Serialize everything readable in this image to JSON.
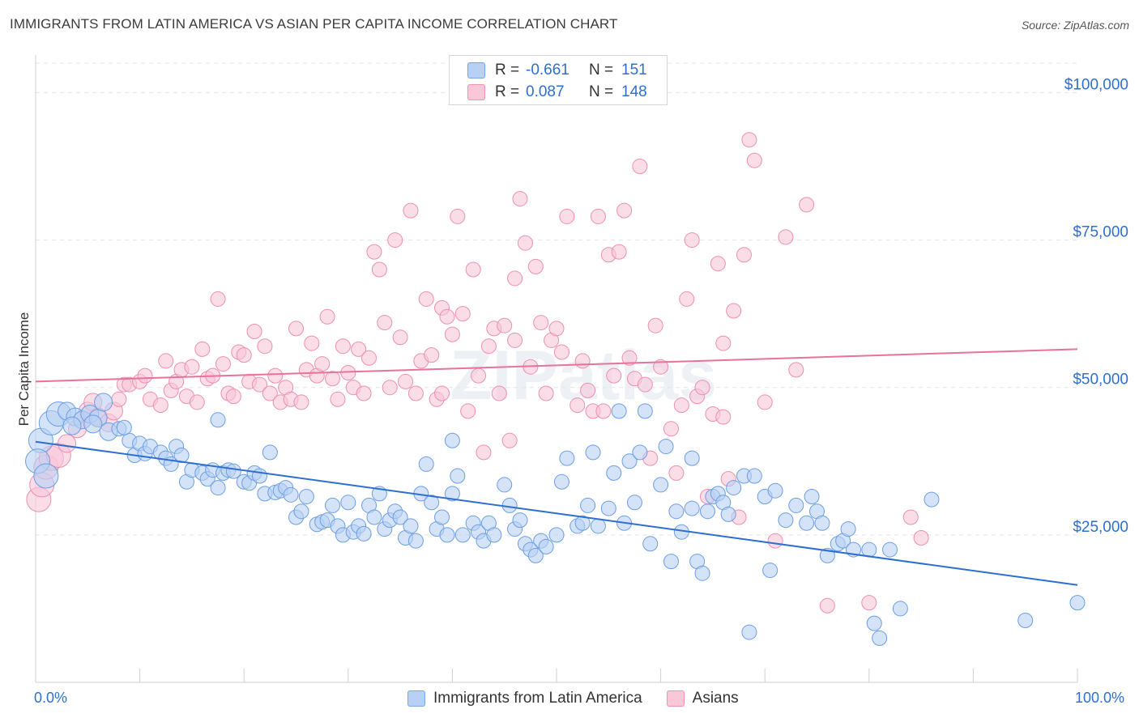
{
  "title": "IMMIGRANTS FROM LATIN AMERICA VS ASIAN PER CAPITA INCOME CORRELATION CHART",
  "source": "Source: ZipAtlas.com",
  "watermark": "ZIPatlas",
  "colors": {
    "blue": "#2d6fd0",
    "pink": "#e8729a",
    "blue_fill": "#b8d0f4",
    "pink_fill": "#f9c7d8"
  },
  "legend": {
    "rows": [
      {
        "r_label": "R =",
        "r_value": "-0.661",
        "n_label": "N =",
        "n_value": "151"
      },
      {
        "r_label": "R =",
        "r_value": "0.087",
        "n_label": "N =",
        "n_value": "148"
      }
    ]
  },
  "chart_data": {
    "type": "scatter",
    "title": "IMMIGRANTS FROM LATIN AMERICA VS ASIAN PER CAPITA INCOME CORRELATION CHART",
    "xlabel": "",
    "ylabel": "Per Capita Income",
    "xlim": [
      0,
      100
    ],
    "ylim": [
      0,
      105000
    ],
    "x_tick_labels": [
      "0.0%",
      "100.0%"
    ],
    "y_tick_values": [
      25000,
      50000,
      75000,
      100000
    ],
    "y_tick_labels": [
      "$25,000",
      "$50,000",
      "$75,000",
      "$100,000"
    ],
    "grid": true,
    "legend_position": "bottom",
    "series": [
      {
        "name": "Immigrants from Latin America",
        "color": "#2d6fd0",
        "trend": {
          "x": [
            0,
            100
          ],
          "y": [
            40800,
            16500
          ]
        },
        "points": [
          [
            0.5,
            41000
          ],
          [
            1.5,
            44000
          ],
          [
            2.2,
            45500
          ],
          [
            3,
            46000
          ],
          [
            3.8,
            45000
          ],
          [
            4.5,
            44500
          ],
          [
            5.2,
            45500
          ],
          [
            6,
            44800
          ],
          [
            6.5,
            47500
          ],
          [
            7,
            42500
          ],
          [
            8,
            43000
          ],
          [
            9,
            41000
          ],
          [
            9.5,
            38500
          ],
          [
            10,
            40500
          ],
          [
            10.5,
            38800
          ],
          [
            11,
            40000
          ],
          [
            12,
            39000
          ],
          [
            12.5,
            38000
          ],
          [
            13,
            37000
          ],
          [
            13.5,
            40000
          ],
          [
            14,
            38500
          ],
          [
            14.5,
            34000
          ],
          [
            15,
            36000
          ],
          [
            16,
            35500
          ],
          [
            16.5,
            34500
          ],
          [
            17,
            36000
          ],
          [
            17.5,
            33000
          ],
          [
            18,
            35500
          ],
          [
            18.5,
            36000
          ],
          [
            19,
            35800
          ],
          [
            20,
            34000
          ],
          [
            20.5,
            33800
          ],
          [
            21,
            35500
          ],
          [
            21.5,
            35000
          ],
          [
            22,
            32000
          ],
          [
            22.5,
            39000
          ],
          [
            23,
            32200
          ],
          [
            23.5,
            32500
          ],
          [
            24,
            33000
          ],
          [
            24.5,
            31800
          ],
          [
            25,
            28000
          ],
          [
            25.5,
            29000
          ],
          [
            26,
            31500
          ],
          [
            27,
            26800
          ],
          [
            27.5,
            27200
          ],
          [
            28,
            27500
          ],
          [
            28.5,
            30000
          ],
          [
            29,
            26500
          ],
          [
            29.5,
            25000
          ],
          [
            30,
            30500
          ],
          [
            30.5,
            25500
          ],
          [
            31,
            26500
          ],
          [
            31.5,
            25200
          ],
          [
            32,
            30000
          ],
          [
            32.5,
            28000
          ],
          [
            33,
            32000
          ],
          [
            33.5,
            26000
          ],
          [
            34,
            27500
          ],
          [
            34.5,
            29000
          ],
          [
            35,
            28000
          ],
          [
            35.5,
            24500
          ],
          [
            36,
            26500
          ],
          [
            36.5,
            24000
          ],
          [
            37,
            32000
          ],
          [
            37.5,
            37000
          ],
          [
            38,
            30500
          ],
          [
            38.5,
            26000
          ],
          [
            39,
            28000
          ],
          [
            39.5,
            25000
          ],
          [
            40,
            32000
          ],
          [
            40.5,
            35000
          ],
          [
            41,
            25000
          ],
          [
            42,
            27000
          ],
          [
            42.5,
            25500
          ],
          [
            43,
            24000
          ],
          [
            43.5,
            27000
          ],
          [
            44,
            25000
          ],
          [
            45,
            33500
          ],
          [
            45.5,
            30000
          ],
          [
            46,
            26000
          ],
          [
            46.5,
            27500
          ],
          [
            47,
            23500
          ],
          [
            47.5,
            22500
          ],
          [
            48,
            21500
          ],
          [
            48.5,
            24000
          ],
          [
            49,
            23000
          ],
          [
            50,
            25000
          ],
          [
            50.5,
            34000
          ],
          [
            51,
            38000
          ],
          [
            52,
            26500
          ],
          [
            52.5,
            27000
          ],
          [
            53,
            30000
          ],
          [
            53.5,
            39000
          ],
          [
            54,
            26500
          ],
          [
            55,
            29500
          ],
          [
            55.5,
            35500
          ],
          [
            56,
            46000
          ],
          [
            56.5,
            27000
          ],
          [
            57,
            37500
          ],
          [
            57.5,
            30500
          ],
          [
            58,
            39000
          ],
          [
            58.5,
            46000
          ],
          [
            59,
            23500
          ],
          [
            60,
            33500
          ],
          [
            60.5,
            40000
          ],
          [
            61,
            20500
          ],
          [
            61.5,
            29000
          ],
          [
            62,
            25500
          ],
          [
            63,
            38000
          ],
          [
            63.5,
            20500
          ],
          [
            64,
            18500
          ],
          [
            64.5,
            29000
          ],
          [
            65,
            31500
          ],
          [
            65.5,
            32000
          ],
          [
            66,
            30500
          ],
          [
            66.5,
            28500
          ],
          [
            67,
            33000
          ],
          [
            68,
            35000
          ],
          [
            68.5,
            8500
          ],
          [
            69,
            35000
          ],
          [
            70,
            31500
          ],
          [
            70.5,
            19000
          ],
          [
            71,
            32500
          ],
          [
            72,
            27500
          ],
          [
            73,
            30000
          ],
          [
            74,
            27000
          ],
          [
            74.5,
            31500
          ],
          [
            75,
            29000
          ],
          [
            75.5,
            27000
          ],
          [
            76,
            21500
          ],
          [
            77,
            23500
          ],
          [
            77.5,
            24000
          ],
          [
            78,
            26000
          ],
          [
            78.5,
            22500
          ],
          [
            80,
            22500
          ],
          [
            80.5,
            10000
          ],
          [
            81,
            7500
          ],
          [
            82,
            22500
          ],
          [
            83,
            12500
          ],
          [
            86,
            31000
          ],
          [
            95,
            10500
          ],
          [
            100,
            13500
          ],
          [
            0.2,
            37500
          ],
          [
            1,
            35000
          ],
          [
            3.5,
            43500
          ],
          [
            5.5,
            43800
          ],
          [
            8.5,
            43200
          ],
          [
            17.5,
            44500
          ],
          [
            63,
            29500
          ],
          [
            40,
            41000
          ]
        ]
      },
      {
        "name": "Asians",
        "color": "#e8729a",
        "trend": {
          "x": [
            0,
            100
          ],
          "y": [
            51000,
            56500
          ]
        },
        "points": [
          [
            0.3,
            31000
          ],
          [
            0.6,
            33500
          ],
          [
            1,
            36500
          ],
          [
            1.5,
            38000
          ],
          [
            2.2,
            38500
          ],
          [
            3,
            40500
          ],
          [
            4,
            43000
          ],
          [
            4.5,
            44500
          ],
          [
            5,
            46000
          ],
          [
            5.5,
            47500
          ],
          [
            6,
            45000
          ],
          [
            7,
            44000
          ],
          [
            7.5,
            46000
          ],
          [
            8,
            48000
          ],
          [
            8.5,
            50500
          ],
          [
            9,
            50500
          ],
          [
            10,
            51000
          ],
          [
            10.5,
            52000
          ],
          [
            11,
            48000
          ],
          [
            12,
            47000
          ],
          [
            12.5,
            54500
          ],
          [
            13,
            49500
          ],
          [
            13.5,
            51000
          ],
          [
            14,
            53000
          ],
          [
            14.5,
            48500
          ],
          [
            15,
            53500
          ],
          [
            15.5,
            47500
          ],
          [
            16,
            56500
          ],
          [
            16.5,
            51500
          ],
          [
            17,
            52000
          ],
          [
            17.5,
            65000
          ],
          [
            18,
            54000
          ],
          [
            18.5,
            49000
          ],
          [
            19,
            48500
          ],
          [
            19.5,
            56000
          ],
          [
            20,
            55500
          ],
          [
            20.5,
            51000
          ],
          [
            21,
            59500
          ],
          [
            21.5,
            50500
          ],
          [
            22,
            57000
          ],
          [
            22.5,
            49000
          ],
          [
            23,
            52000
          ],
          [
            23.5,
            47500
          ],
          [
            24,
            50000
          ],
          [
            24.5,
            48000
          ],
          [
            25,
            60000
          ],
          [
            25.5,
            47500
          ],
          [
            26,
            53000
          ],
          [
            26.5,
            57500
          ],
          [
            27,
            52000
          ],
          [
            27.5,
            54000
          ],
          [
            28,
            62000
          ],
          [
            28.5,
            51500
          ],
          [
            29,
            48000
          ],
          [
            29.5,
            57000
          ],
          [
            30,
            52500
          ],
          [
            30.5,
            50000
          ],
          [
            31,
            56500
          ],
          [
            31.5,
            49000
          ],
          [
            32,
            55000
          ],
          [
            32.5,
            73000
          ],
          [
            33,
            70000
          ],
          [
            33.5,
            61000
          ],
          [
            34,
            50000
          ],
          [
            34.5,
            75000
          ],
          [
            35,
            58500
          ],
          [
            35.5,
            51000
          ],
          [
            36,
            80000
          ],
          [
            36.5,
            49000
          ],
          [
            37,
            54500
          ],
          [
            37.5,
            65000
          ],
          [
            38,
            55500
          ],
          [
            38.5,
            48000
          ],
          [
            39,
            63500
          ],
          [
            39.5,
            62000
          ],
          [
            40,
            59000
          ],
          [
            40.5,
            79000
          ],
          [
            41,
            62500
          ],
          [
            41.5,
            46000
          ],
          [
            42,
            70000
          ],
          [
            42.5,
            52000
          ],
          [
            43,
            39000
          ],
          [
            43.5,
            57000
          ],
          [
            44,
            60000
          ],
          [
            44.5,
            49000
          ],
          [
            45,
            60500
          ],
          [
            45.5,
            41000
          ],
          [
            46,
            58000
          ],
          [
            46.5,
            82000
          ],
          [
            47,
            74500
          ],
          [
            47.5,
            53500
          ],
          [
            48,
            70500
          ],
          [
            48.5,
            61000
          ],
          [
            49,
            49000
          ],
          [
            49.5,
            58000
          ],
          [
            50,
            60000
          ],
          [
            50.5,
            56000
          ],
          [
            51,
            79000
          ],
          [
            52,
            47000
          ],
          [
            52.5,
            54500
          ],
          [
            53,
            49500
          ],
          [
            53.5,
            46000
          ],
          [
            54,
            79000
          ],
          [
            54.5,
            46000
          ],
          [
            55,
            72500
          ],
          [
            55.5,
            52000
          ],
          [
            56,
            73000
          ],
          [
            56.5,
            80000
          ],
          [
            57,
            55000
          ],
          [
            57.5,
            51500
          ],
          [
            58,
            87500
          ],
          [
            58.5,
            50500
          ],
          [
            59,
            38000
          ],
          [
            59.5,
            60500
          ],
          [
            60,
            53500
          ],
          [
            61,
            43000
          ],
          [
            61.5,
            35500
          ],
          [
            62,
            47000
          ],
          [
            62.5,
            65000
          ],
          [
            63,
            75000
          ],
          [
            63.5,
            48500
          ],
          [
            64,
            50000
          ],
          [
            64.5,
            31500
          ],
          [
            65,
            45500
          ],
          [
            65.5,
            71000
          ],
          [
            66,
            57500
          ],
          [
            66.5,
            34500
          ],
          [
            67,
            63000
          ],
          [
            67.5,
            28000
          ],
          [
            68,
            72500
          ],
          [
            68.5,
            92000
          ],
          [
            69,
            88500
          ],
          [
            70,
            47500
          ],
          [
            71,
            24000
          ],
          [
            72,
            75500
          ],
          [
            73,
            53000
          ],
          [
            74,
            81000
          ],
          [
            76,
            13000
          ],
          [
            80,
            13500
          ],
          [
            84,
            28000
          ],
          [
            85,
            24500
          ],
          [
            66,
            45000
          ],
          [
            46,
            68500
          ],
          [
            39,
            49000
          ]
        ]
      }
    ]
  }
}
